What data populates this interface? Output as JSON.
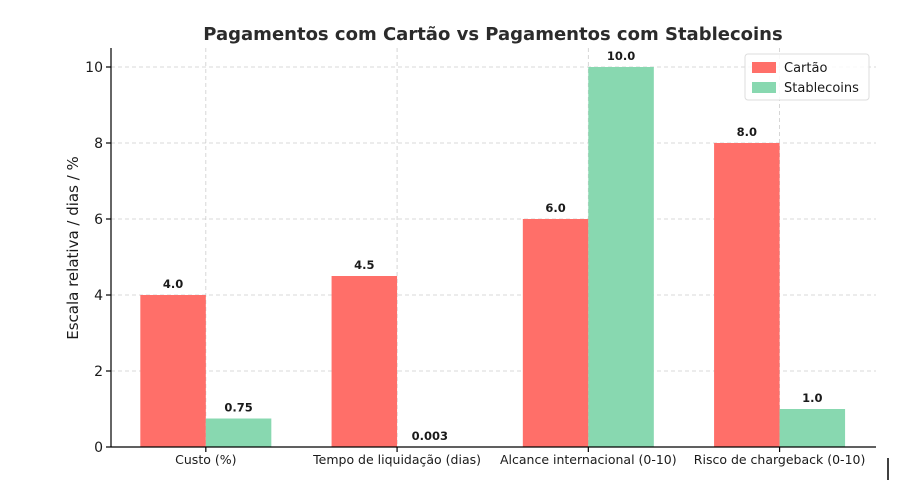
{
  "chart_data": {
    "type": "bar",
    "title": "Pagamentos com Cartão vs Pagamentos com Stablecoins",
    "xlabel": "",
    "ylabel": "Escala relativa / dias / %",
    "categories": [
      "Custo (%)",
      "Tempo de liquidação (dias)",
      "Alcance internacional (0-10)",
      "Risco de chargeback (0-10)"
    ],
    "series": [
      {
        "name": "Cartão",
        "values": [
          4.0,
          4.5,
          6.0,
          8.0
        ],
        "labels": [
          "4.0",
          "4.5",
          "6.0",
          "8.0"
        ],
        "color": "#ff6f69"
      },
      {
        "name": "Stablecoins",
        "values": [
          0.75,
          0.003,
          10.0,
          1.0
        ],
        "labels": [
          "0.75",
          "0.003",
          "10.0",
          "1.0"
        ],
        "color": "#88d8b0"
      }
    ],
    "ylim": [
      0,
      10.5
    ],
    "yticks": [
      0,
      2,
      4,
      6,
      8,
      10
    ],
    "ytick_labels": [
      "0",
      "2",
      "4",
      "6",
      "8",
      "10"
    ],
    "grid": true,
    "legend_position": "top-right"
  }
}
